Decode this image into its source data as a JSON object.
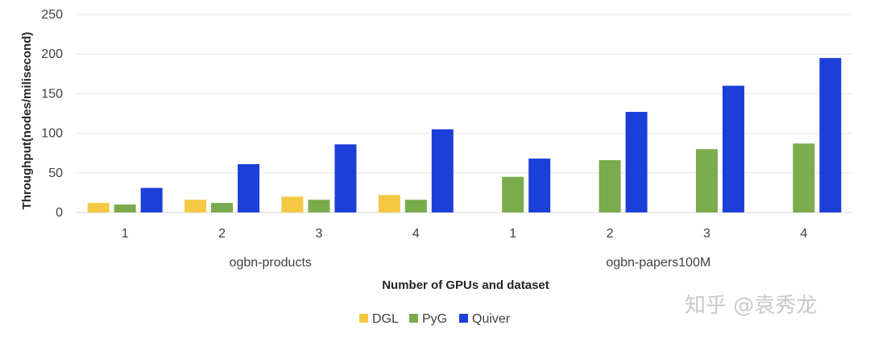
{
  "chart_data": {
    "type": "bar",
    "title": "",
    "xlabel": "Number of GPUs and dataset",
    "ylabel": "Throughput(nodes/milisecond)",
    "ylim": [
      0,
      250
    ],
    "yticks": [
      0,
      50,
      100,
      150,
      200,
      250
    ],
    "grid": true,
    "legend_position": "bottom-center",
    "groups": [
      {
        "label": "ogbn-products",
        "categories": [
          "1",
          "2",
          "3",
          "4"
        ]
      },
      {
        "label": "ogbn-papers100M",
        "categories": [
          "1",
          "2",
          "3",
          "4"
        ]
      }
    ],
    "categories": [
      "1",
      "2",
      "3",
      "4",
      "1",
      "2",
      "3",
      "4"
    ],
    "series": [
      {
        "name": "DGL",
        "color": "#f4c842",
        "values": [
          12,
          16,
          20,
          22,
          null,
          null,
          null,
          null
        ]
      },
      {
        "name": "PyG",
        "color": "#7aab4d",
        "values": [
          10,
          12,
          16,
          16,
          45,
          66,
          80,
          87
        ]
      },
      {
        "name": "Quiver",
        "color": "#1c3fd8",
        "values": [
          31,
          61,
          86,
          105,
          68,
          127,
          160,
          195
        ]
      }
    ]
  },
  "watermark": {
    "text": "知乎 @袁秀龙"
  }
}
